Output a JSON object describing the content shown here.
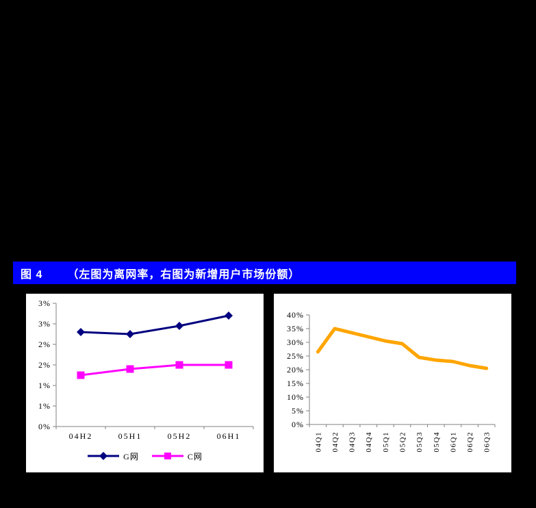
{
  "page": {
    "background_color": "#000000",
    "panel_background": "#FFFFFF",
    "axis_color": "#808080"
  },
  "figure_header": {
    "label": "图 4",
    "title": "（左图为离网率，右图为新增用户市场份额）",
    "background_color": "#0101FE",
    "text_color": "#FFFFFF"
  },
  "chart_data": [
    {
      "type": "line",
      "categories": [
        "04H2",
        "05H1",
        "05H2",
        "06H1"
      ],
      "series": [
        {
          "name": "G网",
          "values": [
            2.3,
            2.25,
            2.45,
            2.7
          ],
          "color": "#000080",
          "marker": "diamond"
        },
        {
          "name": "C网",
          "values": [
            1.25,
            1.4,
            1.5,
            1.5
          ],
          "color": "#FF00FF",
          "marker": "square"
        }
      ],
      "ylim": [
        0,
        3
      ],
      "ytick_step": 0.5,
      "ytick_labels": [
        "0%",
        "1%",
        "1%",
        "2%",
        "2%",
        "3%",
        "3%"
      ],
      "legend_position": "bottom",
      "grid": false,
      "xlabel": "",
      "ylabel": ""
    },
    {
      "type": "line",
      "categories": [
        "04Q1",
        "04Q2",
        "04Q3",
        "04Q4",
        "05Q1",
        "05Q2",
        "05Q3",
        "05Q4",
        "06Q1",
        "06Q2",
        "06Q3"
      ],
      "series": [
        {
          "name": "新增用户市场份额",
          "values": [
            26.5,
            35,
            33.5,
            32,
            30.5,
            29.5,
            24.5,
            23.5,
            23,
            21.5,
            20.5
          ],
          "color": "#FFA500",
          "marker": "none"
        }
      ],
      "ylim": [
        0,
        40
      ],
      "ytick_step": 5,
      "ytick_labels": [
        "0%",
        "5%",
        "10%",
        "15%",
        "20%",
        "25%",
        "30%",
        "35%",
        "40%"
      ],
      "legend_position": "none",
      "grid": false,
      "xlabel": "",
      "ylabel": ""
    }
  ]
}
